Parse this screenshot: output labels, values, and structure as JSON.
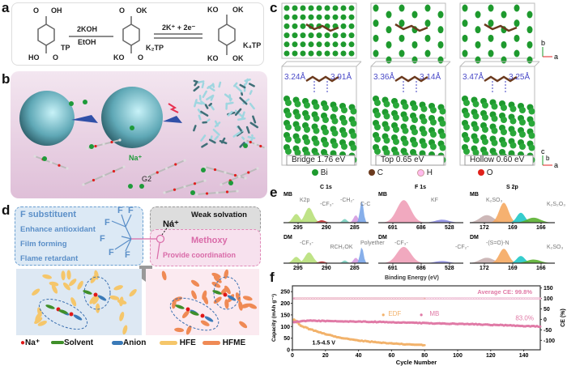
{
  "panels": {
    "a": "a",
    "b": "b",
    "c": "c",
    "d": "d",
    "e": "e",
    "f": "f"
  },
  "a": {
    "reagent_top": "2KOH",
    "reagent_bottom": "EtOH",
    "step2": "2K⁺ + 2e⁻",
    "m1": {
      "name": "TP",
      "top": "OH",
      "bottom": "HO",
      "o_top": "O",
      "o_bottom": "O"
    },
    "m2": {
      "name": "K₂TP",
      "top": "OK",
      "bottom": "KO",
      "o_top": "O",
      "o_bottom": "O"
    },
    "m3": {
      "name": "K₄TP",
      "tl": "KO",
      "tr": "OK",
      "bl": "KO",
      "br": "OK"
    }
  },
  "b": {
    "ion": "Na⁺",
    "solvent": "G2",
    "colors": {
      "bg": "#e6c9e0",
      "sphere": "#6fb6c4",
      "ion": "#1f9a3a"
    }
  },
  "c": {
    "sites": [
      {
        "name": "Bridge",
        "energy": "1.76 eV",
        "d1": "3.24Å",
        "d2": "3.91Å"
      },
      {
        "name": "Top",
        "energy": "0.65 eV",
        "d1": "3.36Å",
        "d2": "3.14Å"
      },
      {
        "name": "Hollow",
        "energy": "0.60 eV",
        "d1": "3.47Å",
        "d2": "3.25Å"
      }
    ],
    "axes_top": {
      "v": "b",
      "h": "a"
    },
    "axes_side": {
      "v": "c",
      "d": "b",
      "h": "a"
    },
    "legend": [
      "Bi",
      "C",
      "H",
      "O"
    ],
    "colors": {
      "Bi": "#1e9a2e",
      "C": "#6b3a1e",
      "H": "#f2d4d4",
      "O": "#e0201a"
    }
  },
  "d": {
    "f_box": {
      "title": "F substituent",
      "items": [
        "Enhance antioxidant",
        "Film forming",
        "Flame retardant"
      ],
      "atom": "F"
    },
    "solvation": {
      "ion": "Na⁺",
      "label": "Weak solvation"
    },
    "methoxy": {
      "title": "Methoxy",
      "subtitle": "Provide coordination",
      "atom": "O"
    },
    "legend": [
      "Na⁺",
      "Solvent",
      "Anion",
      "HFE",
      "HFME"
    ],
    "colors": {
      "na": "#e01818",
      "solvent": "#3f8f2a",
      "anion": "#3a7ab8",
      "hfe": "#f5c66a",
      "hfme": "#ef8a55"
    }
  },
  "e": {
    "xlabel": "Binding Energy (eV)",
    "rows": [
      "MB",
      "DM"
    ],
    "panels": [
      {
        "title": "C 1s",
        "ticks": [
          "295",
          "290",
          "285"
        ],
        "mb_labels": [
          "K2p",
          "-CF₃-",
          "-CH₂-",
          "C-C"
        ],
        "dm_labels": [
          "-CF₃-",
          "RCH₂OK",
          "Polyether"
        ]
      },
      {
        "title": "F 1s",
        "ticks": [
          "691",
          "686",
          "528"
        ],
        "mb_labels": [
          "KF"
        ],
        "dm_labels": [
          "-CF₃-",
          "-CF₂-"
        ]
      },
      {
        "title": "S 2p",
        "ticks": [
          "172",
          "169",
          "166"
        ],
        "mb_labels": [
          "K₂SO₃",
          "K₂S₂O₃"
        ],
        "dm_labels": [
          "-(S=O)-N",
          "K₂SO₃"
        ]
      }
    ]
  },
  "chart_data": {
    "type": "scatter",
    "xlabel": "Cycle Number",
    "ylabel": "Capacity (mAh g⁻¹)",
    "y2label": "CE (%)",
    "xlim": [
      0,
      150
    ],
    "ylim": [
      0,
      275
    ],
    "y2lim": [
      -145,
      160
    ],
    "xticks": [
      "0",
      "20",
      "40",
      "60",
      "80",
      "100",
      "120",
      "140"
    ],
    "yticks": [
      "0",
      "50",
      "100",
      "150",
      "200",
      "250"
    ],
    "y2ticks": [
      "-100",
      "-50",
      "0",
      "50",
      "100",
      "150"
    ],
    "legend": [
      "EDF",
      "MB"
    ],
    "annotations": {
      "avg_ce": "Average CE: 99.8%",
      "retention": "83.0%",
      "voltage": "1.5-4.5 V"
    },
    "series": [
      {
        "name": "EDF",
        "axis": "capacity",
        "color": "#f2b26b",
        "x": [
          1,
          5,
          10,
          20,
          30,
          40,
          50,
          60,
          70,
          80
        ],
        "y": [
          130,
          105,
          90,
          68,
          50,
          40,
          33,
          27,
          23,
          20
        ]
      },
      {
        "name": "MB",
        "axis": "capacity",
        "color": "#e07aa6",
        "x": [
          1,
          10,
          30,
          50,
          70,
          90,
          110,
          130,
          150
        ],
        "y": [
          120,
          125,
          122,
          120,
          117,
          113,
          110,
          105,
          100
        ]
      },
      {
        "name": "EDF",
        "axis": "CE",
        "color": "#f2c9a0",
        "x": [
          1,
          80
        ],
        "y": [
          99.8,
          99.8
        ]
      },
      {
        "name": "MB",
        "axis": "CE",
        "color": "#e9a9c7",
        "x": [
          1,
          150
        ],
        "y": [
          99.8,
          99.8
        ]
      }
    ]
  }
}
